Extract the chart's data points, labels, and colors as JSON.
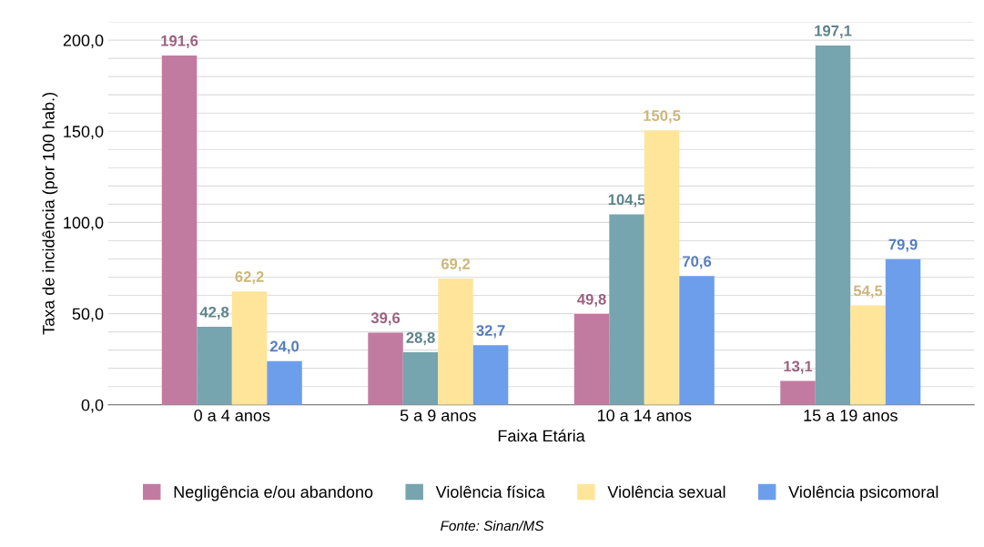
{
  "chart_data": {
    "type": "bar",
    "xlabel": "Faixa Etária",
    "ylabel": "Taxa de incidência (por 100 hab.)",
    "categories": [
      "0 a 4 anos",
      "5 a 9 anos",
      "10 a 14 anos",
      "15 a 19 anos"
    ],
    "series": [
      {
        "name": "Negligência e/ou abandono",
        "color": "#c27ba0",
        "values": [
          191.6,
          39.6,
          49.8,
          13.1
        ],
        "value_labels": [
          "191,6",
          "39,6",
          "49,8",
          "13,1"
        ]
      },
      {
        "name": "Violência física",
        "color": "#76a5af",
        "values": [
          42.8,
          28.8,
          104.5,
          197.1
        ],
        "value_labels": [
          "42,8",
          "28,8",
          "104,5",
          "197,1"
        ]
      },
      {
        "name": "Violência sexual",
        "color": "#ffe599",
        "values": [
          62.2,
          69.2,
          150.5,
          54.5
        ],
        "value_labels": [
          "62,2",
          "69,2",
          "150,5",
          "54,5"
        ]
      },
      {
        "name": "Violência psicomoral",
        "color": "#6d9eeb",
        "values": [
          24.0,
          32.7,
          70.6,
          79.9
        ],
        "value_labels": [
          "24,0",
          "32,7",
          "70,6",
          "79,9"
        ]
      }
    ],
    "ylim": [
      0,
      210
    ],
    "yticks": [
      {
        "value": 0,
        "label": "0,0"
      },
      {
        "value": 10,
        "label": null
      },
      {
        "value": 20,
        "label": null
      },
      {
        "value": 30,
        "label": null
      },
      {
        "value": 40,
        "label": null
      },
      {
        "value": 50,
        "label": "50,0"
      },
      {
        "value": 60,
        "label": null
      },
      {
        "value": 70,
        "label": null
      },
      {
        "value": 80,
        "label": null
      },
      {
        "value": 90,
        "label": null
      },
      {
        "value": 100,
        "label": "100,0"
      },
      {
        "value": 110,
        "label": null
      },
      {
        "value": 120,
        "label": null
      },
      {
        "value": 130,
        "label": null
      },
      {
        "value": 140,
        "label": null
      },
      {
        "value": 150,
        "label": "150,0"
      },
      {
        "value": 160,
        "label": null
      },
      {
        "value": 170,
        "label": null
      },
      {
        "value": 180,
        "label": null
      },
      {
        "value": 190,
        "label": null
      },
      {
        "value": 200,
        "label": "200,0"
      },
      {
        "value": 210,
        "label": null
      }
    ],
    "grid": "y",
    "legend": "bottom",
    "annotations": [
      "Fonte: Sinan/MS"
    ]
  }
}
